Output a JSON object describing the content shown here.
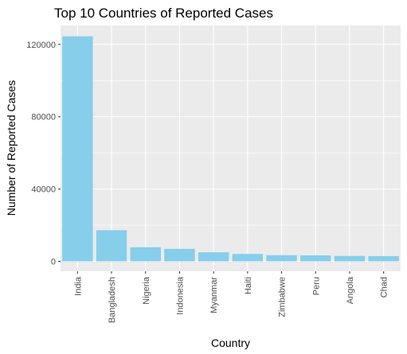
{
  "chart_data": {
    "type": "bar",
    "title": "Top 10 Countries of Reported Cases",
    "xlabel": "Country",
    "ylabel": "Number of Reported Cases",
    "categories": [
      "India",
      "Bangladesh",
      "Nigeria",
      "Indonesia",
      "Myanmar",
      "Haiti",
      "Zimbabwe",
      "Peru",
      "Angola",
      "Chad"
    ],
    "values": [
      124500,
      17200,
      7800,
      6900,
      5000,
      4100,
      3400,
      3300,
      3000,
      2900
    ],
    "ylim": [
      -5500,
      130500
    ],
    "yticks": [
      0,
      40000,
      80000,
      120000
    ],
    "ytick_labels": [
      "0",
      "40000",
      "80000",
      "120000"
    ],
    "bar_color": "#87CEEB",
    "panel_color": "#EBEBEB",
    "grid": true
  }
}
